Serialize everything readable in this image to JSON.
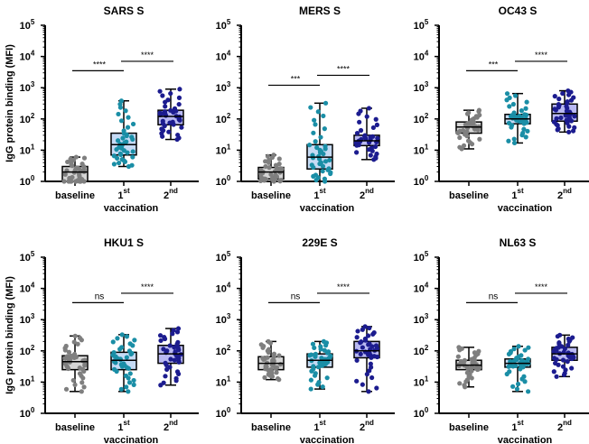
{
  "chart_data": {
    "type": "box",
    "ylabel": "IgG protein binding  (MFI)",
    "xlabel": "vaccination",
    "yscale": "log",
    "ylim": [
      1,
      100000
    ],
    "yticks": [
      {
        "b": "10",
        "e": "0"
      },
      {
        "b": "10",
        "e": "1"
      },
      {
        "b": "10",
        "e": "2"
      },
      {
        "b": "10",
        "e": "3"
      },
      {
        "b": "10",
        "e": "4"
      },
      {
        "b": "10",
        "e": "5"
      }
    ],
    "categories": [
      {
        "base": "baseline",
        "sup": ""
      },
      {
        "base": "1",
        "sup": "st"
      },
      {
        "base": "2",
        "sup": "nd"
      }
    ],
    "colors": {
      "baseline": {
        "stroke": "#7f7f7f",
        "fill": "#d6d6d6"
      },
      "first": {
        "stroke": "#1a8ea6",
        "fill": "#c6dbf5"
      },
      "second": {
        "stroke": "#1c1c8f",
        "fill": "#b9b9f2"
      }
    },
    "n_per_group": 40,
    "panels": [
      {
        "title": "SARS S",
        "groups": [
          [
            1,
            1,
            2,
            3,
            6
          ],
          [
            3,
            7,
            15,
            35,
            380
          ],
          [
            22,
            65,
            120,
            190,
            900
          ]
        ],
        "sig": [
          {
            "from": 0,
            "to": 1,
            "y": 3500,
            "label": "****"
          },
          {
            "from": 1,
            "to": 2,
            "y": 7000,
            "label": "****"
          }
        ]
      },
      {
        "title": "MERS S",
        "groups": [
          [
            1,
            1.2,
            2,
            2.8,
            7
          ],
          [
            1,
            2.5,
            6,
            15,
            320
          ],
          [
            5,
            14,
            20,
            30,
            220
          ]
        ],
        "sig": [
          {
            "from": 0,
            "to": 1,
            "y": 1200,
            "label": "***"
          },
          {
            "from": 1,
            "to": 2,
            "y": 2500,
            "label": "****"
          }
        ]
      },
      {
        "title": "OC43 S",
        "groups": [
          [
            11,
            35,
            55,
            80,
            190
          ],
          [
            17,
            70,
            100,
            140,
            650
          ],
          [
            38,
            85,
            150,
            300,
            800
          ]
        ],
        "sig": [
          {
            "from": 0,
            "to": 1,
            "y": 3500,
            "label": "***"
          },
          {
            "from": 1,
            "to": 2,
            "y": 7000,
            "label": "****"
          }
        ]
      },
      {
        "title": "HKU1 S",
        "groups": [
          [
            5,
            25,
            45,
            70,
            300
          ],
          [
            5,
            25,
            50,
            90,
            330
          ],
          [
            8,
            40,
            80,
            150,
            520
          ]
        ],
        "sig": [
          {
            "from": 0,
            "to": 1,
            "y": 3500,
            "label": "ns"
          },
          {
            "from": 1,
            "to": 2,
            "y": 7000,
            "label": "****"
          }
        ]
      },
      {
        "title": "229E S",
        "groups": [
          [
            12,
            25,
            40,
            65,
            200
          ],
          [
            6,
            30,
            50,
            80,
            200
          ],
          [
            5,
            60,
            100,
            200,
            600
          ]
        ],
        "sig": [
          {
            "from": 0,
            "to": 1,
            "y": 3500,
            "label": "ns"
          },
          {
            "from": 1,
            "to": 2,
            "y": 7000,
            "label": "****"
          }
        ]
      },
      {
        "title": "NL63 S",
        "groups": [
          [
            7,
            25,
            35,
            50,
            130
          ],
          [
            5,
            30,
            40,
            55,
            140
          ],
          [
            15,
            50,
            80,
            130,
            320
          ]
        ],
        "sig": [
          {
            "from": 0,
            "to": 1,
            "y": 3500,
            "label": "ns"
          },
          {
            "from": 1,
            "to": 2,
            "y": 7000,
            "label": "****"
          }
        ]
      }
    ]
  }
}
